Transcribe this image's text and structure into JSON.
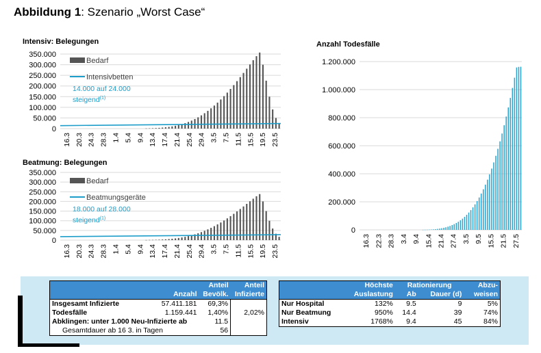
{
  "page_title": {
    "bold": "Abbildung 1",
    "rest": ": Szenario „Worst Case“"
  },
  "colors": {
    "bar_gray": "#555555",
    "bar_blue": "#2aa4cf",
    "line_blue": "#1c9dc9",
    "header_blue": "#3e8dd0",
    "panel_bg": "#cfe9f4"
  },
  "chart_data": [
    {
      "type": "bar",
      "title": "Intensiv: Belegungen",
      "ylim": [
        0,
        350000
      ],
      "yticks": [
        "350.000",
        "300.000",
        "250.000",
        "200.000",
        "150.000",
        "100.000",
        "50.000",
        "0"
      ],
      "xticks": [
        "16.3",
        "20.3",
        "24.3",
        "28.3",
        "1.4",
        "5.4",
        "9.4",
        "13.4",
        "17.4",
        "21.4",
        "25.4",
        "29.4",
        "3.5",
        "7.5",
        "11.5",
        "15.5",
        "19.5",
        "23.5"
      ],
      "legend": {
        "bar": "Bedarf",
        "line": "Intensivbetten",
        "note": "14.000 auf 24.000",
        "note2": "steigend",
        "note_sup": "(1)"
      },
      "series": [
        {
          "name": "Bedarf",
          "values": [
            0,
            0,
            0,
            0,
            0,
            0,
            0,
            0,
            0,
            0,
            0,
            0,
            0,
            0,
            0,
            0,
            0,
            0,
            0,
            0,
            0,
            0,
            0,
            0,
            0,
            0,
            1000,
            1500,
            2000,
            2700,
            3600,
            4800,
            6300,
            8200,
            10500,
            13300,
            16700,
            20800,
            25600,
            31200,
            37600,
            44900,
            53100,
            62200,
            72300,
            83300,
            95300,
            108200,
            122000,
            136800,
            152500,
            169000,
            186300,
            204200,
            222700,
            241800,
            261300,
            281200,
            301200,
            321000,
            340000,
            357000,
            300000,
            225000,
            150000,
            90000,
            50000,
            25000
          ]
        },
        {
          "name": "Intensivbetten",
          "start": 14000,
          "end": 24000
        }
      ]
    },
    {
      "type": "bar",
      "title": "Beatmung: Belegungen",
      "ylim": [
        0,
        350000
      ],
      "yticks": [
        "350.000",
        "300.000",
        "250.000",
        "200.000",
        "150.000",
        "100.000",
        "50.000",
        "0"
      ],
      "xticks": [
        "16.3",
        "20.3",
        "24.3",
        "28.3",
        "1.4",
        "5.4",
        "9.4",
        "13.4",
        "17.4",
        "21.4",
        "25.4",
        "29.4",
        "3.5",
        "7.5",
        "11.5",
        "15.5",
        "19.5",
        "23.5"
      ],
      "legend": {
        "bar": "Bedarf",
        "line": "Beatmungsgeräte",
        "note": "18.000 auf 28.000",
        "note2": "steigend",
        "note_sup": "(1)"
      },
      "series": [
        {
          "name": "Bedarf",
          "values": [
            0,
            0,
            0,
            0,
            0,
            0,
            0,
            0,
            0,
            0,
            0,
            0,
            0,
            0,
            0,
            0,
            0,
            0,
            0,
            0,
            0,
            0,
            0,
            0,
            0,
            0,
            600,
            1000,
            1300,
            1800,
            2400,
            3200,
            4200,
            5500,
            7000,
            8900,
            11100,
            13800,
            17000,
            20800,
            25100,
            29900,
            35400,
            41500,
            48200,
            55500,
            63500,
            72100,
            81300,
            91100,
            101500,
            112500,
            124000,
            135900,
            148300,
            161000,
            174000,
            187400,
            200800,
            214000,
            226700,
            238000,
            200000,
            150000,
            100000,
            60000,
            33000,
            17000
          ]
        },
        {
          "name": "Beatmungsgeräte",
          "start": 18000,
          "end": 28000
        }
      ]
    },
    {
      "type": "bar",
      "title": "Anzahl Todesfälle",
      "ylim": [
        0,
        1200000
      ],
      "yticks": [
        "1.200.000",
        "1.000.000",
        "800.000",
        "600.000",
        "400.000",
        "200.000",
        "0"
      ],
      "xticks": [
        "16.3",
        "22.3",
        "28.3",
        "3.4",
        "9.4",
        "15.4",
        "21.4",
        "27.4",
        "3.5",
        "9.5",
        "15.5",
        "21.5",
        "27.5"
      ],
      "series": [
        {
          "name": "Todesfälle",
          "values": [
            0,
            0,
            0,
            0,
            0,
            0,
            0,
            0,
            0,
            0,
            0,
            0,
            0,
            0,
            0,
            0,
            0,
            0,
            0,
            0,
            0,
            0,
            0,
            0,
            0,
            0,
            0,
            0,
            0,
            0,
            500,
            800,
            1200,
            1800,
            2600,
            3600,
            5000,
            6800,
            9000,
            11600,
            14700,
            18400,
            22800,
            28000,
            34000,
            41000,
            49000,
            58000,
            68500,
            80000,
            93000,
            107500,
            123500,
            141000,
            160500,
            182000,
            205500,
            231000,
            259000,
            289500,
            322500,
            358000,
            396000,
            437000,
            481000,
            528000,
            578000,
            631000,
            687000,
            746000,
            808000,
            873000,
            941000,
            1012000,
            1085000,
            1158000,
            1162000,
            1163000
          ]
        }
      ]
    }
  ],
  "left_table": {
    "header": {
      "col_anzahl": "Anzahl",
      "col_anteil_bev_1": "Anteil",
      "col_anteil_bev_2": "Bevölk.",
      "col_anteil_inf_1": "Anteil",
      "col_anteil_inf_2": "Infizierte"
    },
    "rows": [
      {
        "label": "Insgesamt Infizierte",
        "anzahl": "57.411.181",
        "anteil_bev": "69,3%",
        "anteil_inf": ""
      },
      {
        "label": "Todesfälle",
        "anzahl": "1.159.441",
        "anteil_bev": "1,40%",
        "anteil_inf": "2,02%"
      },
      {
        "label": "Abklingen: unter 1.000 Neu-Infizierte ab",
        "anzahl": "",
        "anteil_bev": "11.5",
        "anteil_inf": ""
      },
      {
        "label": "Gesamtdauer ab 16 3. in Tagen",
        "anzahl": "",
        "anteil_bev": "56",
        "anteil_inf": ""
      }
    ]
  },
  "right_table": {
    "header": {
      "hochste_1": "Höchste",
      "hochste_2": "Auslastung",
      "rationierung": "Rationierung",
      "ab": "Ab",
      "dauer": "Dauer (d)",
      "abzu_1": "Abzu-",
      "abzu_2": "weisen"
    },
    "rows": [
      {
        "label": "Nur Hospital",
        "auslastung": "132%",
        "ab": "9.5",
        "dauer": "9",
        "abzuweisen": "5%"
      },
      {
        "label": "Nur Beatmung",
        "auslastung": "950%",
        "ab": "14.4",
        "dauer": "39",
        "abzuweisen": "74%"
      },
      {
        "label": "Intensiv",
        "auslastung": "1768%",
        "ab": "9.4",
        "dauer": "45",
        "abzuweisen": "84%"
      }
    ]
  }
}
